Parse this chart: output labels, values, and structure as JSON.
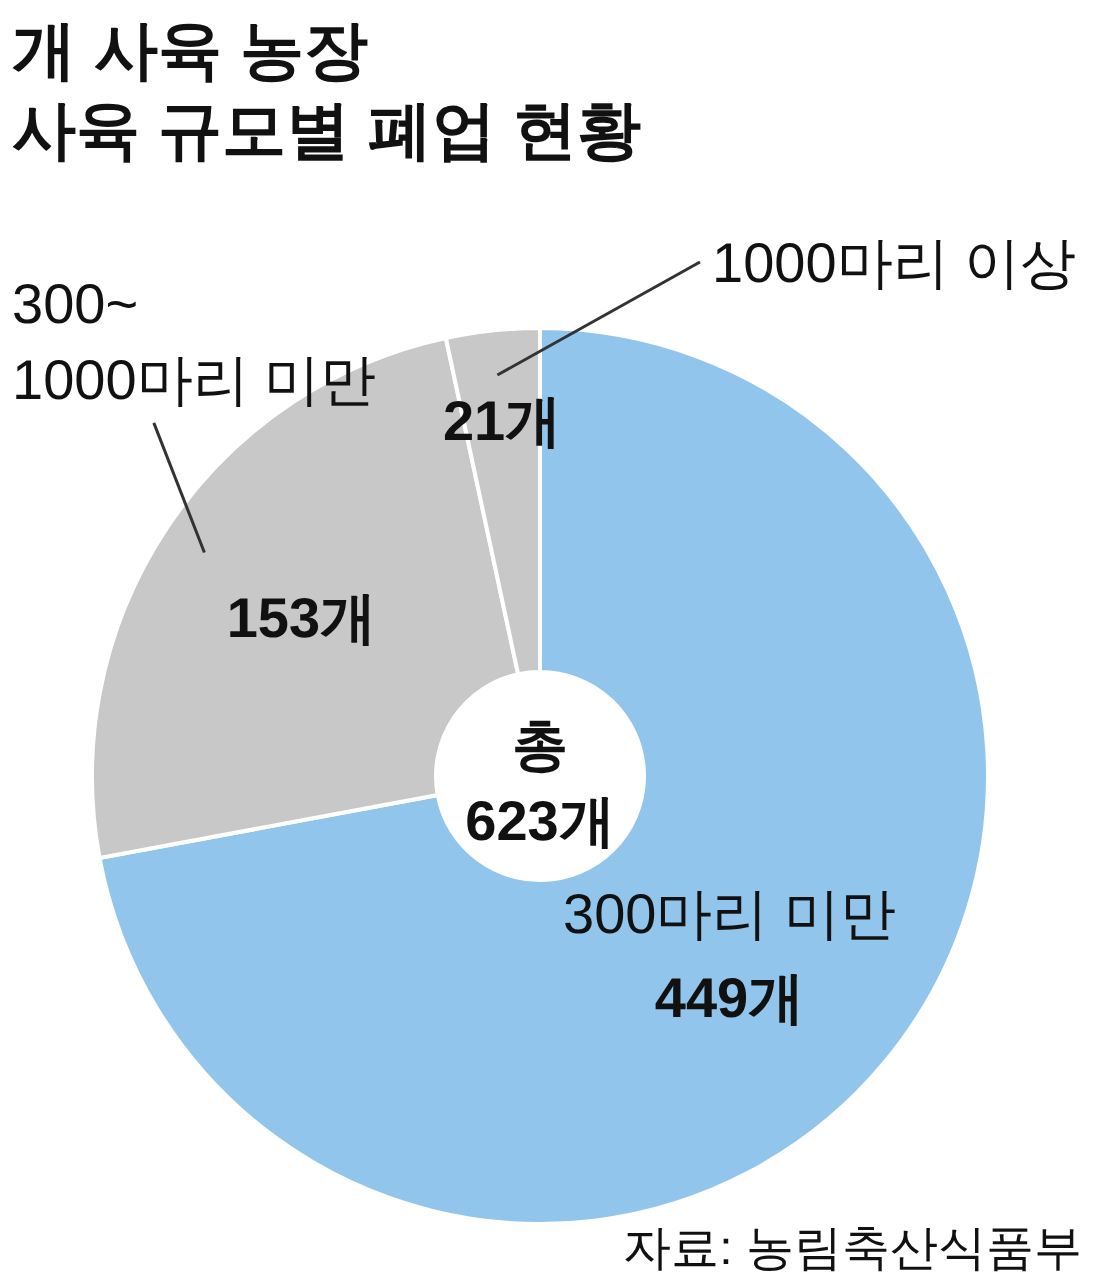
{
  "chart_data": {
    "type": "donut",
    "title": "개 사육 농장\n사육 규모별 폐업 현황",
    "categories": [
      "300마리 미만",
      "300~\n1000마리 미만",
      "1000마리 이상"
    ],
    "values": [
      449,
      153,
      21
    ],
    "value_labels": [
      "449개",
      "153개",
      "21개"
    ],
    "colors": [
      "#92c5ec",
      "#c8c8c8",
      "#c8c8c8"
    ],
    "annotations": [
      "총\n623개",
      "자료: 농림축산식품부"
    ]
  }
}
